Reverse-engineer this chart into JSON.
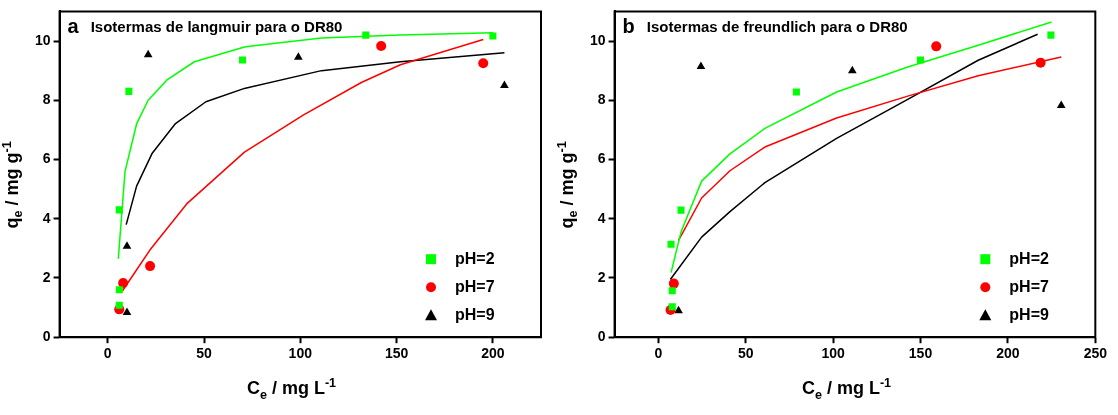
{
  "chart_data": [
    {
      "type": "scatter",
      "title": "Isotermas de langmuir para o DR80",
      "annotations": [
        "a"
      ],
      "xlabel": "C$_{e}$ / mg L$^{-1}$",
      "ylabel": "q$_{e}$ / mg g$^{-1}$",
      "xlim": [
        -25,
        225
      ],
      "xticks": [
        0,
        50,
        100,
        150,
        200
      ],
      "ylim": [
        0,
        11
      ],
      "yticks": [
        0,
        2,
        4,
        6,
        8,
        10
      ],
      "grid": false,
      "legend": "bottom right",
      "series": [
        {
          "name": "pH=2",
          "color": "#00ff00",
          "marker": "square",
          "x": [
            6,
            6,
            6,
            11,
            70,
            134,
            200
          ],
          "values": [
            1.08,
            1.6,
            4.3,
            8.3,
            9.36,
            10.2,
            10.17
          ]
        },
        {
          "name": "pH=7",
          "color": "#ff0000",
          "marker": "circle",
          "x": [
            6,
            8,
            22,
            142,
            195
          ],
          "values": [
            0.94,
            1.83,
            2.4,
            9.83,
            9.25
          ]
        },
        {
          "name": "pH=9",
          "color": "#000000",
          "marker": "triangle",
          "x": [
            10,
            10,
            21,
            99,
            206
          ],
          "values": [
            0.83,
            3.07,
            9.54,
            9.45,
            8.5
          ]
        },
        {
          "type": "line",
          "color": "#00ff00",
          "marker": "none",
          "x": [
            5.5,
            9,
            15,
            21,
            31,
            45,
            71,
            111,
            152,
            200
          ],
          "values": [
            2.65,
            5.6,
            7.2,
            8.0,
            8.7,
            9.3,
            9.8,
            10.1,
            10.2,
            10.28
          ]
        },
        {
          "type": "line",
          "color": "#ff0000",
          "marker": "none",
          "x": [
            7.6,
            22,
            41,
            71,
            101.5,
            131.7,
            152,
            195
          ],
          "values": [
            1.56,
            2.95,
            4.5,
            6.25,
            7.5,
            8.6,
            9.2,
            10.05
          ]
        },
        {
          "type": "line",
          "color": "#000000",
          "marker": "none",
          "x": [
            9.6,
            15,
            23,
            35,
            51,
            71,
            111,
            152,
            206
          ],
          "values": [
            3.8,
            5.1,
            6.2,
            7.2,
            7.95,
            8.4,
            9.0,
            9.3,
            9.6
          ]
        }
      ]
    },
    {
      "type": "scatter",
      "title": "Isotermas de freundlich para o DR80",
      "annotations": [
        "b"
      ],
      "xlabel": "C$_{e}$ / mg L$^{-1}$",
      "ylabel": "q$_{e}$ / mg g$^{-1}$",
      "xlim": [
        -25,
        250
      ],
      "xticks": [
        0,
        50,
        100,
        150,
        200,
        250
      ],
      "ylim": [
        0,
        11
      ],
      "yticks": [
        0,
        2,
        4,
        6,
        8,
        10
      ],
      "grid": false,
      "legend": "bottom right",
      "series": [
        {
          "name": "pH=2",
          "color": "#00ff00",
          "marker": "square",
          "x": [
            7.3,
            8,
            8,
            13,
            79,
            150,
            224.6
          ],
          "values": [
            3.14,
            1.57,
            1.03,
            4.29,
            8.28,
            9.36,
            10.2
          ]
        },
        {
          "name": "pH=7",
          "color": "#ff0000",
          "marker": "circle",
          "x": [
            7,
            8.9,
            159,
            218.7
          ],
          "values": [
            0.92,
            1.81,
            9.82,
            9.27
          ]
        },
        {
          "name": "pH=9",
          "color": "#000000",
          "marker": "triangle",
          "x": [
            11.6,
            24.4,
            111,
            230.5
          ],
          "values": [
            0.89,
            9.14,
            9.0,
            7.82
          ]
        },
        {
          "type": "line",
          "color": "#00ff00",
          "marker": "none",
          "x": [
            7.3,
            13,
            24.8,
            41,
            61,
            102,
            142.7,
            183,
            225
          ],
          "values": [
            2.18,
            3.55,
            5.27,
            6.19,
            7.05,
            8.28,
            9.12,
            9.86,
            10.64
          ]
        },
        {
          "type": "line",
          "color": "#ff0000",
          "marker": "none",
          "x": [
            11.6,
            24.8,
            41,
            61,
            102,
            142.7,
            183,
            230.5
          ],
          "values": [
            3.27,
            4.7,
            5.62,
            6.42,
            7.4,
            8.14,
            8.83,
            9.46
          ]
        },
        {
          "type": "line",
          "color": "#000000",
          "marker": "none",
          "x": [
            6.9,
            24.8,
            41,
            61,
            102,
            142.7,
            183,
            217
          ],
          "values": [
            1.95,
            3.38,
            4.24,
            5.22,
            6.71,
            8.03,
            9.35,
            10.23
          ]
        }
      ]
    }
  ]
}
